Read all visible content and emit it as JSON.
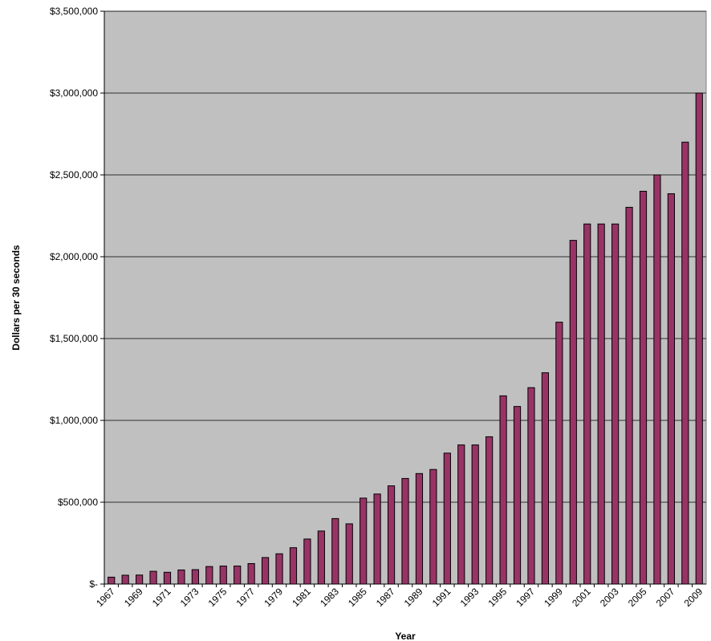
{
  "colors": {
    "plot_background": "#c0c0c0",
    "bar_fill": "#993366",
    "bar_stroke": "#000000",
    "gridline": "#000000"
  },
  "chart_data": {
    "type": "bar",
    "title": "",
    "xlabel": "Year",
    "ylabel": "Dollars per 30 seconds",
    "ylim": [
      0,
      3500000
    ],
    "grid": true,
    "legend": "none",
    "y_ticks": [
      0,
      500000,
      1000000,
      1500000,
      2000000,
      2500000,
      3000000,
      3500000
    ],
    "y_tick_labels": [
      "$-",
      "$500,000",
      "$1,000,000",
      "$1,500,000",
      "$2,000,000",
      "$2,500,000",
      "$3,000,000",
      "$3,500,000"
    ],
    "categories": [
      "1967",
      "1968",
      "1969",
      "1970",
      "1971",
      "1972",
      "1973",
      "1974",
      "1975",
      "1976",
      "1977",
      "1978",
      "1979",
      "1980",
      "1981",
      "1982",
      "1983",
      "1984",
      "1985",
      "1986",
      "1987",
      "1988",
      "1989",
      "1990",
      "1991",
      "1992",
      "1993",
      "1994",
      "1995",
      "1996",
      "1997",
      "1998",
      "1999",
      "2000",
      "2001",
      "2002",
      "2003",
      "2004",
      "2005",
      "2006",
      "2007",
      "2008",
      "2009"
    ],
    "x_tick_labels": [
      "1967",
      "",
      "1969",
      "",
      "1971",
      "",
      "1973",
      "",
      "1975",
      "",
      "1977",
      "",
      "1979",
      "",
      "1981",
      "",
      "1983",
      "",
      "1985",
      "",
      "1987",
      "",
      "1989",
      "",
      "1991",
      "",
      "1993",
      "",
      "1995",
      "",
      "1997",
      "",
      "1999",
      "",
      "2001",
      "",
      "2003",
      "",
      "2005",
      "",
      "2007",
      "",
      "2009"
    ],
    "values": [
      42000,
      54000,
      55000,
      78000,
      72000,
      86000,
      88000,
      107000,
      110000,
      110000,
      125000,
      162000,
      185000,
      222000,
      275000,
      324000,
      400000,
      368000,
      525000,
      550000,
      600000,
      645000,
      675000,
      700000,
      800000,
      850000,
      850000,
      900000,
      1150000,
      1085000,
      1200000,
      1291000,
      1600000,
      2100000,
      2200000,
      2200000,
      2200000,
      2302000,
      2400000,
      2500000,
      2385000,
      2700000,
      3000000
    ]
  }
}
